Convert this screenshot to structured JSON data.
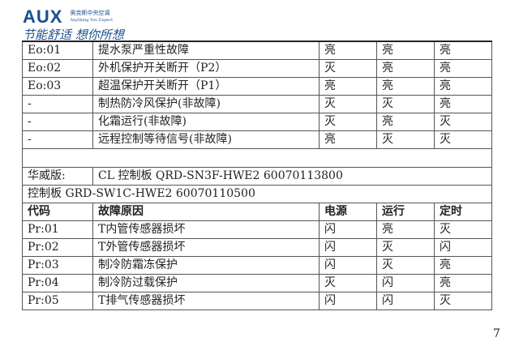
{
  "logo": {
    "brand": "AUX",
    "brand_cn": "奥克斯中央空调",
    "tagline_en": "Anything You Expect",
    "slogan": "节能舒适 想你所想"
  },
  "rows_top": [
    {
      "code": "Eo:01",
      "reason": "提水泵严重性故障",
      "power": "亮",
      "run": "亮",
      "timer": "亮"
    },
    {
      "code": "Eo:02",
      "reason": "外机保护开关断开（P2）",
      "power": "灭",
      "run": "亮",
      "timer": "亮"
    },
    {
      "code": "Eo:03",
      "reason": "超温保护开关断开（P1）",
      "power": "亮",
      "run": "亮",
      "timer": "亮"
    },
    {
      "code": "-",
      "reason": "制热防冷风保护(非故障)",
      "power": "灭",
      "run": "灭",
      "timer": "亮"
    },
    {
      "code": "-",
      "reason": "化霜运行(非故障)",
      "power": "灭",
      "run": "亮",
      "timer": "灭"
    },
    {
      "code": "-",
      "reason": "远程控制等待信号(非故障)",
      "power": "亮",
      "run": "灭",
      "timer": "灭"
    }
  ],
  "huawei": {
    "label": "华威版:",
    "board1": "CL 控制板 QRD-SN3F-HWE2 60070113800",
    "board2": "控制板 GRD-SW1C-HWE2 60070110500"
  },
  "header": {
    "code": "代码",
    "reason": "故障原因",
    "power": "电源",
    "run": "运行",
    "timer": "定时"
  },
  "rows_bottom": [
    {
      "code": "Pr:01",
      "reason": "T内管传感器损坏",
      "power": "闪",
      "run": "亮",
      "timer": "灭"
    },
    {
      "code": "Pr:02",
      "reason": "T外管传感器损坏",
      "power": "闪",
      "run": "灭",
      "timer": "闪"
    },
    {
      "code": "Pr:03",
      "reason": "制冷防霜冻保护",
      "power": "闪",
      "run": "灭",
      "timer": "亮"
    },
    {
      "code": "Pr:04",
      "reason": "制冷防过载保护",
      "power": "灭",
      "run": "闪",
      "timer": "亮"
    },
    {
      "code": "Pr:05",
      "reason": "T排气传感器损坏",
      "power": "闪",
      "run": "闪",
      "timer": "灭"
    }
  ],
  "page_number": "7"
}
